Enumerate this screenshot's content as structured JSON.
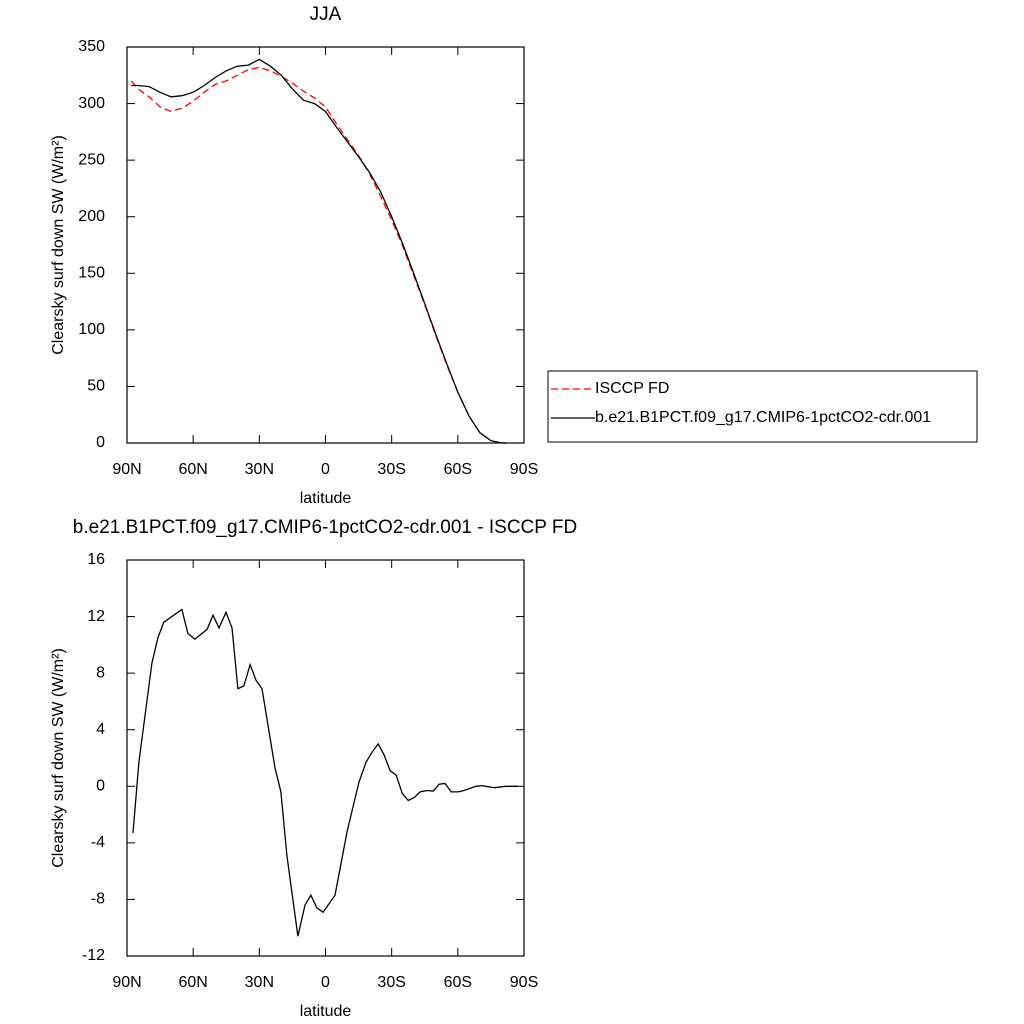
{
  "chart_data": [
    {
      "type": "line",
      "title": "JJA",
      "xlabel": "latitude",
      "ylabel": "Clearsky surf down SW (W/m²)",
      "x": [
        88,
        85,
        80,
        75,
        70,
        65,
        60,
        55,
        50,
        45,
        40,
        35,
        30,
        25,
        20,
        15,
        10,
        5,
        0,
        -5,
        -10,
        -15,
        -20,
        -25,
        -30,
        -35,
        -40,
        -45,
        -50,
        -55,
        -60,
        -65,
        -70,
        -75,
        -80,
        -82
      ],
      "series": [
        {
          "name": "ISCCP FD",
          "color": "#ff0000",
          "dash": true,
          "values": [
            320,
            313,
            306,
            297,
            293,
            296,
            302,
            310,
            317,
            320,
            325,
            330,
            332,
            329,
            324,
            318,
            311,
            305,
            297,
            282,
            268,
            254,
            238,
            218,
            197,
            174,
            148,
            122,
            95,
            69,
            45,
            24,
            9,
            2,
            0,
            0
          ]
        },
        {
          "name": "b.e21.B1PCT.f09_g17.CMIP6-1pctCO2-cdr.001",
          "color": "#000000",
          "dash": false,
          "values": [
            316,
            316,
            315,
            310,
            306,
            307,
            310,
            316,
            323,
            329,
            333,
            334,
            339,
            333,
            325,
            313,
            303,
            300,
            293,
            279,
            266,
            253,
            239,
            222,
            200,
            176,
            150,
            123,
            96,
            70,
            45,
            24,
            9,
            2,
            0,
            0
          ]
        }
      ],
      "xlim": [
        90,
        -90
      ],
      "xticks": [
        {
          "value": 90,
          "label": "90N"
        },
        {
          "value": 60,
          "label": "60N"
        },
        {
          "value": 30,
          "label": "30N"
        },
        0,
        {
          "value": -30,
          "label": "30S"
        },
        {
          "value": -60,
          "label": "60S"
        },
        {
          "value": -90,
          "label": "90S"
        }
      ],
      "ylim": [
        0,
        350
      ],
      "yticks": [
        0,
        50,
        100,
        150,
        200,
        250,
        300,
        350
      ],
      "legend": "outside-right"
    },
    {
      "type": "line",
      "title": "b.e21.B1PCT.f09_g17.CMIP6-1pctCO2-cdr.001 - ISCCP FD",
      "xlabel": "latitude",
      "ylabel": "Clearsky surf down SW (W/m²)",
      "x": [
        87.3,
        84.6,
        78.7,
        76,
        73.3,
        65.1,
        62.4,
        59.2,
        53.7,
        51,
        48.3,
        45.1,
        42.4,
        39.7,
        37,
        34.2,
        31.5,
        28.8,
        22.9,
        20.2,
        17.5,
        12.5,
        9.3,
        6.6,
        3.9,
        1.1,
        -4.3,
        -9.8,
        -15.2,
        -18.4,
        -21.1,
        -23.9,
        -26.6,
        -29.3,
        -32,
        -34.8,
        -37.5,
        -40.2,
        -42.9,
        -46.1,
        -48.8,
        -51.5,
        -54.2,
        -57,
        -60.1,
        -62.8,
        -68.2,
        -70.9,
        -76.4,
        -81.8,
        -87.3
      ],
      "series": [
        {
          "color": "#000000",
          "dash": false,
          "values": [
            -3.3,
            1.7,
            8.7,
            10.5,
            11.6,
            12.5,
            10.8,
            10.4,
            11.1,
            12.1,
            11.2,
            12.3,
            11.2,
            6.9,
            7.1,
            8.6,
            7.5,
            6.9,
            1.3,
            -0.4,
            -4.9,
            -10.6,
            -8.4,
            -7.7,
            -8.6,
            -8.9,
            -7.7,
            -3.2,
            0.3,
            1.7,
            2.4,
            3,
            2.2,
            1.1,
            0.8,
            -0.5,
            -1,
            -0.8,
            -0.4,
            -0.3,
            -0.35,
            0.15,
            0.2,
            -0.4,
            -0.4,
            -0.3,
            0,
            0.05,
            -0.1,
            0,
            0
          ]
        }
      ],
      "xlim": [
        90,
        -90
      ],
      "xticks": [
        {
          "value": 90,
          "label": "90N"
        },
        {
          "value": 60,
          "label": "60N"
        },
        {
          "value": 30,
          "label": "30N"
        },
        0,
        {
          "value": -30,
          "label": "30S"
        },
        {
          "value": -60,
          "label": "60S"
        },
        {
          "value": -90,
          "label": "90S"
        }
      ],
      "ylim": [
        -12,
        16
      ],
      "yticks": [
        -12,
        -8,
        -4,
        0,
        4,
        8,
        12,
        16
      ]
    }
  ]
}
